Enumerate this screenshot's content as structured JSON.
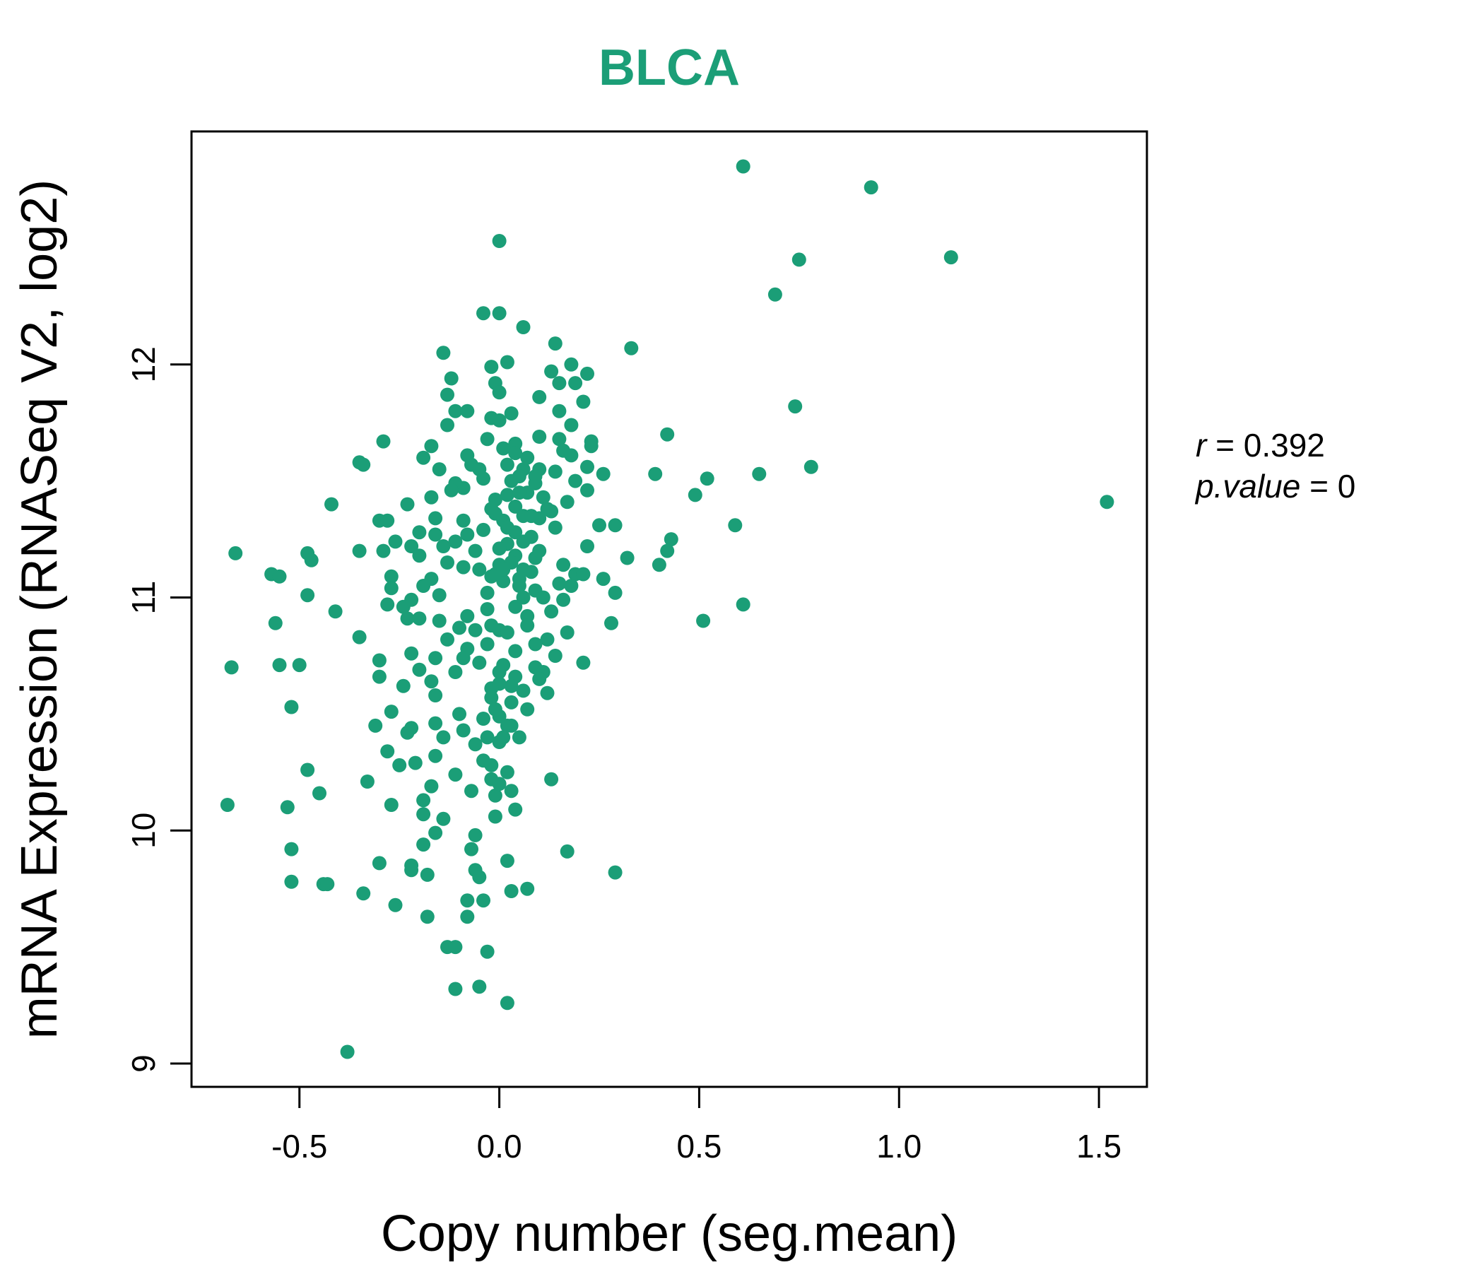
{
  "chart_data": {
    "type": "scatter",
    "title": "BLCA",
    "xlabel": "Copy number (seg.mean)",
    "ylabel": "mRNA Expression (RNASeq V2, log2)",
    "xlim": [
      -0.77,
      1.62
    ],
    "ylim": [
      8.9,
      13.0
    ],
    "xticks": [
      -0.5,
      0.0,
      0.5,
      1.0,
      1.5
    ],
    "xtick_labels": [
      "-0.5",
      "0.0",
      "0.5",
      "1.0",
      "1.5"
    ],
    "yticks": [
      9,
      10,
      11,
      12
    ],
    "ytick_labels": [
      "9",
      "10",
      "11",
      "12"
    ],
    "grid": false,
    "legend": "none",
    "stats": {
      "r_label": "r",
      "r_value": "0.392",
      "p_label": "p.value",
      "p_value": "0"
    },
    "points": [
      [
        0.61,
        12.85
      ],
      [
        0.93,
        12.76
      ],
      [
        0.0,
        12.53
      ],
      [
        0.75,
        12.45
      ],
      [
        1.13,
        12.46
      ],
      [
        0.69,
        12.3
      ],
      [
        -0.04,
        12.22
      ],
      [
        0.0,
        12.22
      ],
      [
        0.06,
        12.16
      ],
      [
        0.14,
        12.09
      ],
      [
        0.33,
        12.07
      ],
      [
        -0.14,
        12.05
      ],
      [
        0.02,
        12.01
      ],
      [
        -0.02,
        11.99
      ],
      [
        0.13,
        11.97
      ],
      [
        0.18,
        12.0
      ],
      [
        0.22,
        11.96
      ],
      [
        -0.12,
        11.94
      ],
      [
        0.15,
        11.92
      ],
      [
        0.19,
        11.92
      ],
      [
        -0.01,
        11.92
      ],
      [
        0.0,
        11.88
      ],
      [
        -0.13,
        11.87
      ],
      [
        0.1,
        11.86
      ],
      [
        0.21,
        11.84
      ],
      [
        0.74,
        11.82
      ],
      [
        -0.11,
        11.8
      ],
      [
        -0.08,
        11.8
      ],
      [
        0.03,
        11.79
      ],
      [
        0.15,
        11.8
      ],
      [
        -0.02,
        11.77
      ],
      [
        0.0,
        11.76
      ],
      [
        0.18,
        11.74
      ],
      [
        -0.13,
        11.74
      ],
      [
        0.42,
        11.7
      ],
      [
        -0.29,
        11.67
      ],
      [
        0.1,
        11.69
      ],
      [
        0.23,
        11.67
      ],
      [
        0.15,
        11.68
      ],
      [
        -0.17,
        11.65
      ],
      [
        -0.03,
        11.68
      ],
      [
        0.04,
        11.66
      ],
      [
        0.16,
        11.63
      ],
      [
        0.23,
        11.65
      ],
      [
        0.01,
        11.64
      ],
      [
        -0.08,
        11.61
      ],
      [
        0.18,
        11.61
      ],
      [
        -0.19,
        11.6
      ],
      [
        -0.35,
        11.58
      ],
      [
        -0.34,
        11.57
      ],
      [
        -0.07,
        11.57
      ],
      [
        0.02,
        11.57
      ],
      [
        0.1,
        11.55
      ],
      [
        0.22,
        11.56
      ],
      [
        0.78,
        11.56
      ],
      [
        -0.15,
        11.55
      ],
      [
        0.14,
        11.54
      ],
      [
        0.06,
        11.55
      ],
      [
        0.26,
        11.53
      ],
      [
        0.39,
        11.53
      ],
      [
        0.65,
        11.53
      ],
      [
        0.05,
        11.52
      ],
      [
        0.52,
        11.51
      ],
      [
        -0.04,
        11.51
      ],
      [
        0.19,
        11.5
      ],
      [
        0.09,
        11.49
      ],
      [
        -0.11,
        11.49
      ],
      [
        -0.09,
        11.47
      ],
      [
        0.22,
        11.46
      ],
      [
        0.07,
        11.45
      ],
      [
        -0.12,
        11.46
      ],
      [
        0.02,
        11.44
      ],
      [
        0.49,
        11.44
      ],
      [
        -0.17,
        11.43
      ],
      [
        0.11,
        11.43
      ],
      [
        -0.01,
        11.42
      ],
      [
        0.17,
        11.41
      ],
      [
        1.52,
        11.41
      ],
      [
        -0.42,
        11.4
      ],
      [
        -0.23,
        11.4
      ],
      [
        0.04,
        11.39
      ],
      [
        0.13,
        11.37
      ],
      [
        -0.01,
        11.36
      ],
      [
        0.06,
        11.35
      ],
      [
        -0.16,
        11.34
      ],
      [
        0.1,
        11.34
      ],
      [
        0.01,
        11.33
      ],
      [
        -0.3,
        11.33
      ],
      [
        -0.28,
        11.33
      ],
      [
        -0.09,
        11.33
      ],
      [
        0.25,
        11.31
      ],
      [
        0.29,
        11.31
      ],
      [
        0.59,
        11.31
      ],
      [
        0.14,
        11.3
      ],
      [
        -0.04,
        11.29
      ],
      [
        0.04,
        11.28
      ],
      [
        -0.2,
        11.28
      ],
      [
        -0.16,
        11.27
      ],
      [
        -0.08,
        11.27
      ],
      [
        0.08,
        11.26
      ],
      [
        0.43,
        11.25
      ],
      [
        -0.26,
        11.24
      ],
      [
        -0.11,
        11.24
      ],
      [
        0.02,
        11.23
      ],
      [
        -0.14,
        11.22
      ],
      [
        0.22,
        11.22
      ],
      [
        -0.22,
        11.22
      ],
      [
        -0.06,
        11.2
      ],
      [
        0.42,
        11.2
      ],
      [
        -0.29,
        11.2
      ],
      [
        -0.35,
        11.2
      ],
      [
        -0.66,
        11.19
      ],
      [
        -0.48,
        11.19
      ],
      [
        0.04,
        11.18
      ],
      [
        -0.2,
        11.18
      ],
      [
        0.09,
        11.17
      ],
      [
        0.32,
        11.17
      ],
      [
        -0.47,
        11.16
      ],
      [
        -0.13,
        11.15
      ],
      [
        0.16,
        11.14
      ],
      [
        0.0,
        11.14
      ],
      [
        0.4,
        11.14
      ],
      [
        -0.09,
        11.13
      ],
      [
        0.06,
        11.12
      ],
      [
        -0.05,
        11.12
      ],
      [
        0.08,
        11.11
      ],
      [
        -0.57,
        11.1
      ],
      [
        -0.55,
        11.09
      ],
      [
        -0.27,
        11.09
      ],
      [
        0.19,
        11.1
      ],
      [
        0.21,
        11.1
      ],
      [
        -0.02,
        11.09
      ],
      [
        0.05,
        11.08
      ],
      [
        -0.17,
        11.08
      ],
      [
        0.26,
        11.08
      ],
      [
        0.01,
        11.07
      ],
      [
        0.15,
        11.06
      ],
      [
        -0.19,
        11.05
      ],
      [
        0.18,
        11.05
      ],
      [
        -0.27,
        11.04
      ],
      [
        0.09,
        11.03
      ],
      [
        -0.03,
        11.02
      ],
      [
        -0.48,
        11.01
      ],
      [
        -0.15,
        11.01
      ],
      [
        0.29,
        11.02
      ],
      [
        0.11,
        11.0
      ],
      [
        -0.22,
        10.99
      ],
      [
        0.16,
        10.99
      ],
      [
        -0.28,
        10.97
      ],
      [
        0.61,
        10.97
      ],
      [
        0.04,
        10.96
      ],
      [
        -0.24,
        10.96
      ],
      [
        -0.41,
        10.94
      ],
      [
        0.13,
        10.94
      ],
      [
        -0.08,
        10.92
      ],
      [
        0.07,
        10.92
      ],
      [
        -0.23,
        10.91
      ],
      [
        -0.2,
        10.91
      ],
      [
        -0.15,
        10.9
      ],
      [
        0.51,
        10.9
      ],
      [
        -0.56,
        10.89
      ],
      [
        0.28,
        10.89
      ],
      [
        -0.02,
        10.88
      ],
      [
        0.07,
        10.88
      ],
      [
        -0.1,
        10.87
      ],
      [
        -0.06,
        10.86
      ],
      [
        0.0,
        10.86
      ],
      [
        0.17,
        10.85
      ],
      [
        -0.35,
        10.83
      ],
      [
        -0.13,
        10.82
      ],
      [
        0.12,
        10.82
      ],
      [
        -0.03,
        10.8
      ],
      [
        0.09,
        10.8
      ],
      [
        -0.08,
        10.78
      ],
      [
        0.04,
        10.77
      ],
      [
        -0.22,
        10.76
      ],
      [
        0.14,
        10.75
      ],
      [
        -0.09,
        10.74
      ],
      [
        -0.16,
        10.74
      ],
      [
        -0.3,
        10.73
      ],
      [
        0.21,
        10.72
      ],
      [
        -0.05,
        10.72
      ],
      [
        0.01,
        10.71
      ],
      [
        -0.67,
        10.7
      ],
      [
        -0.55,
        10.71
      ],
      [
        -0.5,
        10.71
      ],
      [
        0.09,
        10.7
      ],
      [
        -0.2,
        10.69
      ],
      [
        -0.11,
        10.68
      ],
      [
        0.11,
        10.68
      ],
      [
        -0.3,
        10.66
      ],
      [
        0.04,
        10.66
      ],
      [
        0.1,
        10.65
      ],
      [
        -0.17,
        10.64
      ],
      [
        0.0,
        10.63
      ],
      [
        -0.24,
        10.62
      ],
      [
        -0.02,
        10.61
      ],
      [
        0.06,
        10.6
      ],
      [
        0.12,
        10.59
      ],
      [
        -0.16,
        10.58
      ],
      [
        -0.02,
        10.57
      ],
      [
        0.03,
        10.55
      ],
      [
        -0.52,
        10.53
      ],
      [
        0.07,
        10.52
      ],
      [
        -0.27,
        10.51
      ],
      [
        -0.1,
        10.5
      ],
      [
        0.0,
        10.49
      ],
      [
        -0.04,
        10.48
      ],
      [
        -0.16,
        10.46
      ],
      [
        0.03,
        10.45
      ],
      [
        -0.31,
        10.45
      ],
      [
        -0.22,
        10.44
      ],
      [
        -0.09,
        10.43
      ],
      [
        -0.23,
        10.42
      ],
      [
        0.05,
        10.4
      ],
      [
        -0.14,
        10.4
      ],
      [
        -0.03,
        10.4
      ],
      [
        0.0,
        10.38
      ],
      [
        -0.06,
        10.37
      ],
      [
        -0.28,
        10.34
      ],
      [
        -0.16,
        10.32
      ],
      [
        -0.04,
        10.3
      ],
      [
        -0.21,
        10.29
      ],
      [
        -0.25,
        10.28
      ],
      [
        -0.48,
        10.26
      ],
      [
        0.02,
        10.25
      ],
      [
        -0.11,
        10.24
      ],
      [
        -0.02,
        10.22
      ],
      [
        0.13,
        10.22
      ],
      [
        -0.33,
        10.21
      ],
      [
        -0.17,
        10.19
      ],
      [
        0.03,
        10.17
      ],
      [
        -0.07,
        10.17
      ],
      [
        -0.01,
        10.15
      ],
      [
        -0.45,
        10.16
      ],
      [
        -0.19,
        10.13
      ],
      [
        -0.68,
        10.11
      ],
      [
        -0.27,
        10.11
      ],
      [
        -0.53,
        10.1
      ],
      [
        0.04,
        10.09
      ],
      [
        -0.19,
        10.07
      ],
      [
        -0.01,
        10.06
      ],
      [
        -0.14,
        10.05
      ],
      [
        -0.16,
        9.99
      ],
      [
        -0.06,
        9.98
      ],
      [
        -0.19,
        9.94
      ],
      [
        -0.52,
        9.92
      ],
      [
        -0.07,
        9.92
      ],
      [
        0.17,
        9.91
      ],
      [
        -0.3,
        9.86
      ],
      [
        -0.22,
        9.85
      ],
      [
        0.02,
        9.87
      ],
      [
        -0.22,
        9.83
      ],
      [
        -0.06,
        9.83
      ],
      [
        0.29,
        9.82
      ],
      [
        -0.18,
        9.81
      ],
      [
        -0.05,
        9.8
      ],
      [
        -0.52,
        9.78
      ],
      [
        -0.44,
        9.77
      ],
      [
        -0.43,
        9.77
      ],
      [
        0.03,
        9.74
      ],
      [
        0.07,
        9.75
      ],
      [
        -0.34,
        9.73
      ],
      [
        -0.08,
        9.7
      ],
      [
        -0.04,
        9.7
      ],
      [
        -0.26,
        9.68
      ],
      [
        -0.18,
        9.63
      ],
      [
        -0.08,
        9.63
      ],
      [
        -0.13,
        9.5
      ],
      [
        -0.11,
        9.5
      ],
      [
        -0.03,
        9.48
      ],
      [
        -0.11,
        9.32
      ],
      [
        -0.05,
        9.33
      ],
      [
        0.02,
        9.26
      ],
      [
        -0.38,
        9.05
      ],
      [
        0.03,
        11.5
      ],
      [
        0.05,
        11.45
      ],
      [
        -0.02,
        11.38
      ],
      [
        0.08,
        11.35
      ],
      [
        0.02,
        11.3
      ],
      [
        0.06,
        11.24
      ],
      [
        0.0,
        11.21
      ],
      [
        0.03,
        11.15
      ],
      [
        -0.01,
        11.1
      ],
      [
        0.05,
        11.05
      ],
      [
        0.1,
        11.2
      ],
      [
        0.12,
        11.38
      ],
      [
        0.07,
        11.6
      ],
      [
        0.04,
        11.62
      ],
      [
        -0.05,
        11.55
      ],
      [
        0.09,
        11.52
      ],
      [
        0.01,
        11.12
      ],
      [
        0.06,
        11.0
      ],
      [
        -0.03,
        10.95
      ],
      [
        0.02,
        10.85
      ],
      [
        0.0,
        10.68
      ],
      [
        0.03,
        10.62
      ],
      [
        -0.01,
        10.52
      ],
      [
        0.02,
        10.45
      ],
      [
        0.01,
        10.4
      ],
      [
        -0.02,
        10.28
      ],
      [
        0.0,
        10.2
      ]
    ]
  },
  "colors": {
    "point": "#1b9e77",
    "title": "#1b9e77",
    "axis": "#000000"
  }
}
